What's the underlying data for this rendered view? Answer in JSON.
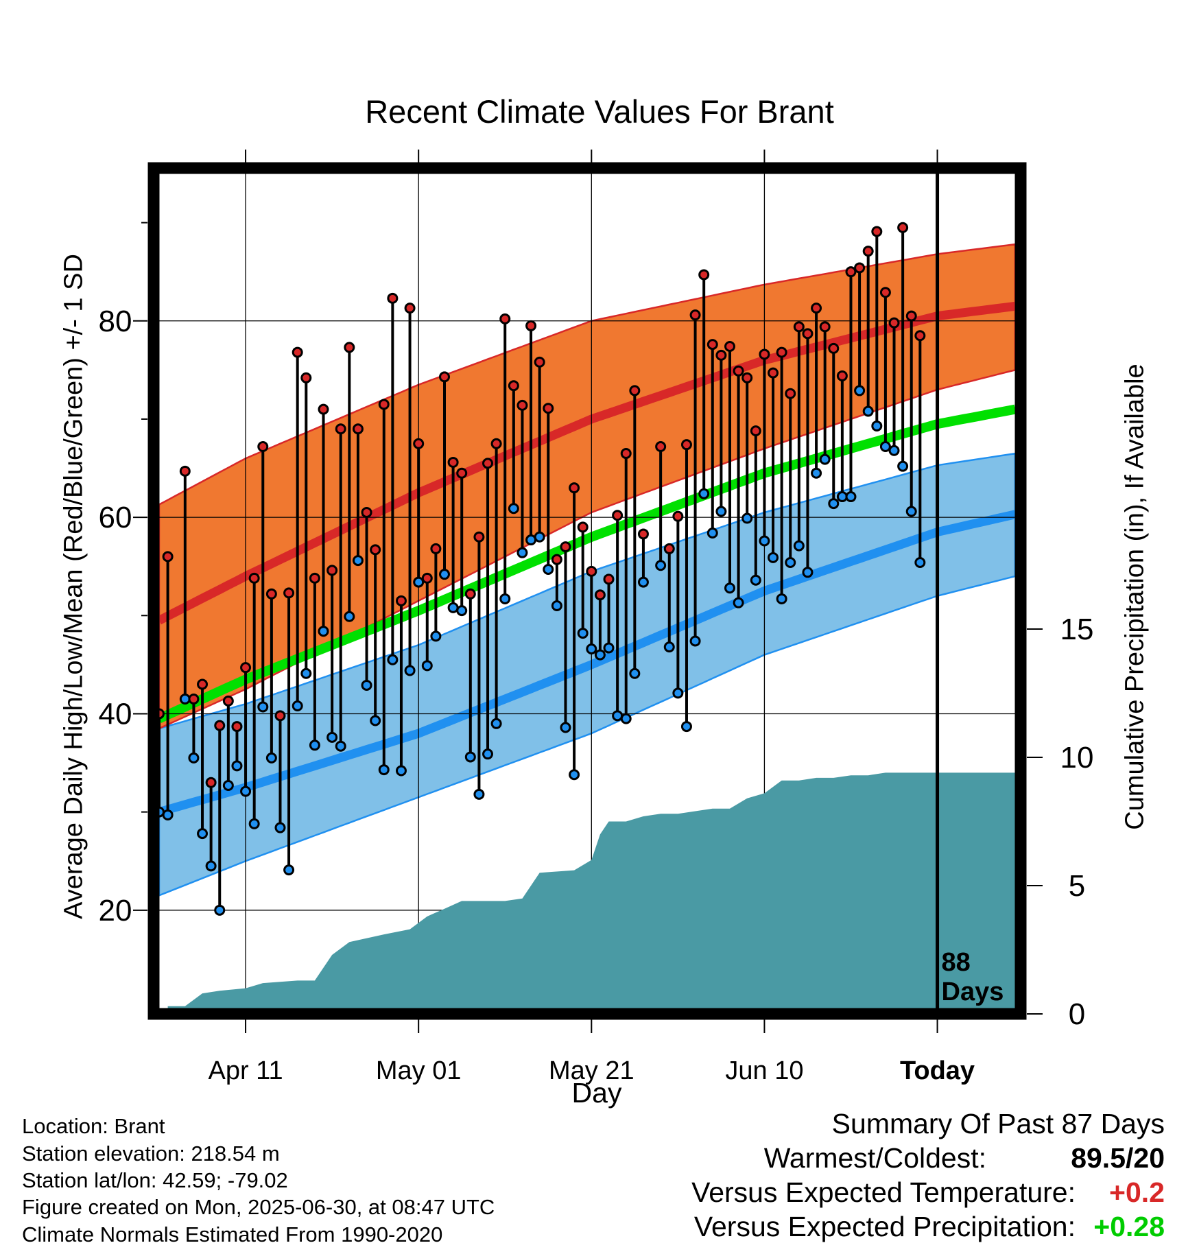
{
  "title": "Recent Climate Values For Brant",
  "xlabel": "Day",
  "ylabel_left": "Average Daily High/Low/Mean (Red/Blue/Green) +/- 1 SD",
  "ylabel_right": "Cumulative Precipitation (in), If Available",
  "days_marker": {
    "line1": "88",
    "line2": "Days"
  },
  "footer": {
    "location": "Location: Brant",
    "elevation": "Station elevation: 218.54 m",
    "latlon": "Station lat/lon: 42.59; -79.02",
    "created": "Figure created on Mon, 2025-06-30, at 08:47 UTC",
    "normals": "Climate Normals Estimated From 1990-2020"
  },
  "summary": {
    "heading": "Summary Of Past 87 Days",
    "warm_cold_label": "Warmest/Coldest:",
    "warm_cold_value": "89.5/20",
    "temp_label": "Versus Expected Temperature:",
    "temp_value": "+0.2",
    "precip_label": "Versus Expected Precipitation:",
    "precip_value": "+0.28"
  },
  "colors": {
    "high_band": "#f07830",
    "high_mean": "#d82828",
    "low_band": "#80c0e8",
    "low_mean": "#2090f0",
    "mean_line": "#00e000",
    "precip_fill": "#4a9aa4",
    "temp_positive": "#d82828",
    "precip_positive": "#00cc00"
  },
  "chart_data": {
    "type": "line",
    "x_axis": {
      "ticks": [
        "Apr 11",
        "May 01",
        "May 21",
        "Jun 10",
        "Today"
      ],
      "tick_day_offsets": [
        -80,
        -60,
        -40,
        -20,
        0
      ],
      "range_day_offsets": [
        -90,
        9
      ]
    },
    "y_left": {
      "range": [
        10,
        95
      ],
      "ticks": [
        20,
        40,
        60,
        80
      ]
    },
    "y_right": {
      "range": [
        0,
        20
      ],
      "ticks": [
        0,
        5,
        10,
        15
      ]
    },
    "normals": {
      "day_offsets": [
        -90,
        -80,
        -60,
        -40,
        -20,
        0,
        9
      ],
      "high_mean": [
        49.5,
        54,
        62.5,
        70,
        76,
        80.5,
        81.5
      ],
      "high_upper": [
        61.3,
        66,
        73.5,
        80,
        83.7,
        86.8,
        87.8
      ],
      "high_lower": [
        38.5,
        42.5,
        51.5,
        60.5,
        67,
        73,
        75
      ],
      "low_mean": [
        30,
        32.5,
        38,
        45,
        52.5,
        58.5,
        60.3
      ],
      "low_upper": [
        38.5,
        41,
        47,
        54.5,
        60.5,
        65.3,
        66.5
      ],
      "low_lower": [
        21.5,
        25,
        31.5,
        38,
        46,
        52,
        54
      ],
      "mean": [
        39.5,
        43.5,
        50.5,
        58,
        64.5,
        69.5,
        71
      ]
    },
    "observed": {
      "start_day_offset": -90,
      "high": [
        40,
        56,
        null,
        64.7,
        41.5,
        43,
        33,
        38.8,
        41.3,
        38.7,
        44.7,
        53.8,
        67.2,
        52.2,
        39.8,
        52.3,
        76.8,
        74.2,
        53.8,
        71,
        54.6,
        69,
        77.3,
        69,
        60.5,
        56.7,
        71.5,
        82.3,
        51.5,
        81.3,
        67.5,
        53.8,
        56.8,
        74.3,
        65.6,
        64.5,
        52.2,
        58,
        65.5,
        67.5,
        80.2,
        73.4,
        71.4,
        79.5,
        75.8,
        71.1,
        55.7,
        57,
        63,
        59,
        54.5,
        52.1,
        53.7,
        60.2,
        66.5,
        72.9,
        58.3,
        null,
        67.2,
        56.8,
        60.1,
        67.4,
        80.6,
        84.7,
        77.6,
        76.5,
        77.4,
        74.9,
        74.2,
        68.8,
        76.6,
        74.7,
        76.8,
        72.6,
        79.4,
        78.7,
        81.3,
        79.4,
        77.2,
        74.4,
        85,
        85.4,
        87.1,
        89.1,
        82.9,
        79.8,
        89.5,
        80.5,
        78.5
      ],
      "low": [
        30,
        29.7,
        null,
        41.5,
        35.5,
        27.8,
        24.5,
        20,
        32.7,
        34.7,
        32.1,
        28.8,
        40.7,
        35.5,
        28.4,
        24.1,
        40.8,
        44.1,
        36.8,
        48.4,
        37.6,
        36.7,
        49.9,
        55.6,
        42.9,
        39.3,
        34.3,
        45.5,
        34.2,
        44.4,
        53.4,
        44.9,
        47.9,
        54.2,
        50.8,
        50.5,
        35.6,
        31.8,
        35.9,
        39,
        51.7,
        60.9,
        56.4,
        57.7,
        58,
        54.7,
        51,
        38.6,
        33.8,
        48.2,
        46.6,
        46,
        46.7,
        39.8,
        39.5,
        44.1,
        53.4,
        null,
        55.1,
        46.8,
        42.1,
        38.7,
        47.4,
        62.4,
        58.4,
        60.6,
        52.8,
        51.3,
        59.9,
        53.6,
        57.6,
        55.9,
        51.7,
        55.4,
        57.1,
        54.4,
        64.5,
        65.9,
        61.4,
        62.1,
        62.1,
        72.9,
        70.8,
        69.3,
        67.2,
        66.8,
        65.2,
        60.6,
        55.4
      ]
    },
    "precip_cumulative": {
      "day_offsets": [
        -89,
        -87,
        -85,
        -83,
        -80,
        -78,
        -74,
        -72,
        -70,
        -68,
        -64,
        -61,
        -59,
        -57,
        -55,
        -53,
        -52,
        -50,
        -48,
        -46,
        -42,
        -40,
        -39,
        -38,
        -36,
        -34,
        -32,
        -30,
        -28,
        -26,
        -24,
        -22,
        -20,
        -18,
        -16,
        -14,
        -12,
        -10,
        -8,
        -6,
        -4,
        -2,
        0,
        9
      ],
      "values": [
        0.3,
        0.3,
        0.8,
        0.9,
        1.0,
        1.2,
        1.3,
        1.3,
        2.3,
        2.8,
        3.1,
        3.3,
        3.8,
        4.1,
        4.4,
        4.4,
        4.4,
        4.4,
        4.5,
        5.5,
        5.6,
        6.0,
        7.0,
        7.5,
        7.5,
        7.7,
        7.8,
        7.8,
        7.9,
        8.0,
        8.0,
        8.4,
        8.6,
        9.1,
        9.1,
        9.2,
        9.2,
        9.3,
        9.3,
        9.4,
        9.4,
        9.4,
        9.4,
        9.4
      ]
    }
  }
}
